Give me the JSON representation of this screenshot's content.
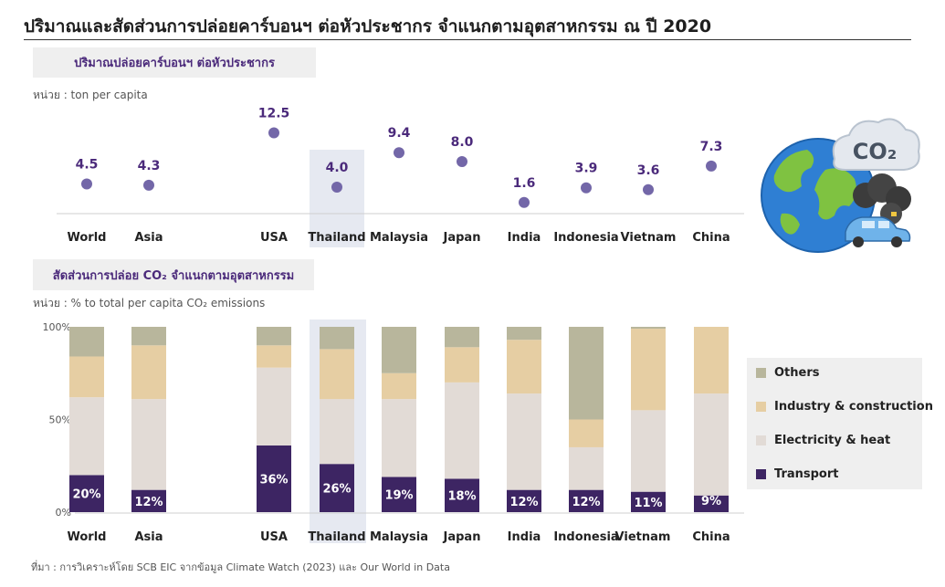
{
  "title": "ปริมาณและสัดส่วนการปล่อยคาร์บอนฯ ต่อหัวประชากร จำแนกตามอุตสาหกรรม ณ ปี 2020",
  "section1": {
    "label": "ปริมาณปล่อยคาร์บอนฯ ต่อหัวประชากร",
    "unit": "หน่วย : ton per capita"
  },
  "section2": {
    "label": "สัดส่วนการปล่อย CO₂ จำแนกตามอุตสาหกรรม",
    "unit": "หน่วย : % to total per capita CO₂ emissions"
  },
  "co2_label": "CO₂",
  "source": "ที่มา : การวิเคราะห์โดย SCB EIC จากข้อมูล Climate Watch (2023) และ Our World in Data",
  "colors": {
    "dot": "#7367a8",
    "transport": "#3d2563",
    "electricity": "#e2dbd6",
    "industry": "#e6cea3",
    "others": "#b8b69c",
    "highlight": "#e6e9f1",
    "label": "#4b2a7b"
  },
  "icons": [
    "globe-icon",
    "co2-cloud-icon",
    "car-icon",
    "smoke-icon"
  ],
  "chart_data": [
    {
      "type": "scatter",
      "title": "ปริมาณปล่อยคาร์บอนฯ ต่อหัวประชากร",
      "ylabel": "ton per capita",
      "categories": [
        "World",
        "Asia",
        "USA",
        "Thailand",
        "Malaysia",
        "Japan",
        "India",
        "Indonesia",
        "Vietnam",
        "China"
      ],
      "values": [
        4.5,
        4.3,
        12.5,
        4.0,
        9.4,
        8.0,
        1.6,
        3.9,
        3.6,
        7.3
      ],
      "value_labels": [
        "4.5",
        "4.3",
        "12.5",
        "4.0",
        "9.4",
        "8.0",
        "1.6",
        "3.9",
        "3.6",
        "7.3"
      ],
      "highlight": "Thailand",
      "grid": false
    },
    {
      "type": "bar",
      "stacked": true,
      "title": "สัดส่วนการปล่อย CO₂ จำแนกตามอุตสาหกรรม",
      "ylabel": "% to total per capita CO₂ emissions",
      "categories": [
        "World",
        "Asia",
        "USA",
        "Thailand",
        "Malaysia",
        "Japan",
        "India",
        "Indonesia",
        "Vietnam",
        "China"
      ],
      "ylim": [
        0,
        100
      ],
      "yticks": [
        "0%",
        "50%",
        "100%"
      ],
      "highlight": "Thailand",
      "legend_position": "right",
      "series": [
        {
          "name": "Transport",
          "values": [
            20,
            12,
            36,
            26,
            19,
            18,
            12,
            12,
            11,
            9
          ],
          "labels": [
            "20%",
            "12%",
            "36%",
            "26%",
            "19%",
            "18%",
            "12%",
            "12%",
            "11%",
            "9%"
          ]
        },
        {
          "name": "Electricity & heat",
          "values": [
            42,
            49,
            42,
            35,
            42,
            52,
            52,
            23,
            44,
            55
          ]
        },
        {
          "name": "Industry & construction",
          "values": [
            22,
            29,
            12,
            27,
            14,
            19,
            29,
            15,
            44,
            36
          ]
        },
        {
          "name": "Others",
          "values": [
            16,
            10,
            10,
            12,
            25,
            11,
            7,
            50,
            1,
            0
          ]
        }
      ],
      "legend_order": [
        "Others",
        "Industry & construction",
        "Electricity & heat",
        "Transport"
      ],
      "grid": false
    }
  ]
}
